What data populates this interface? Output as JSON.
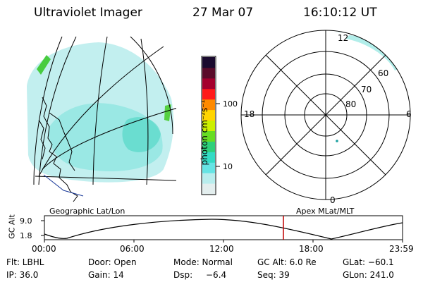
{
  "header": {
    "instrument": "Ultraviolet Imager",
    "date": "27 Mar 07",
    "time": "16:10:12 UT"
  },
  "colorbar": {
    "unit_label": "photon cm⁻²s⁻¹",
    "ticks": [
      "100",
      "10"
    ],
    "colors": [
      "#1a0a2e",
      "#5a0b2a",
      "#a4002d",
      "#ff1a1a",
      "#ff8a00",
      "#ffd500",
      "#ccf000",
      "#66dd22",
      "#2ed07a",
      "#33dbc4",
      "#66e4e4",
      "#b8eded",
      "#e3eeee"
    ]
  },
  "polar_plot": {
    "mlt_labels": {
      "top": "12",
      "left": "18",
      "right": "6",
      "bottom": "0"
    },
    "lat_labels": [
      "60",
      "70",
      "80"
    ]
  },
  "timeline": {
    "left_label": "Geographic Lat/Lon",
    "right_label": "Apex MLat/MLT",
    "axis_title": "GC Alt",
    "y_ticks": [
      "9.0",
      "1.8"
    ],
    "x_ticks": [
      "00:00",
      "06:00",
      "12:00",
      "18:00",
      "23:59"
    ],
    "marker_color": "#c00000"
  },
  "info": {
    "row1": {
      "filter": "Flt: LBHL",
      "door": "Door: Open",
      "mode": "Mode: Normal",
      "gc_alt": "GC Alt: 6.0 Re",
      "glat": "GLat: −60.1"
    },
    "row2": {
      "ip": "IP: 36.0",
      "gain": "Gain: 14",
      "dsp_label": "Dsp:",
      "dsp_value": "−6.4",
      "seq": "Seq: 39",
      "glon": "GLon: 241.0"
    }
  }
}
